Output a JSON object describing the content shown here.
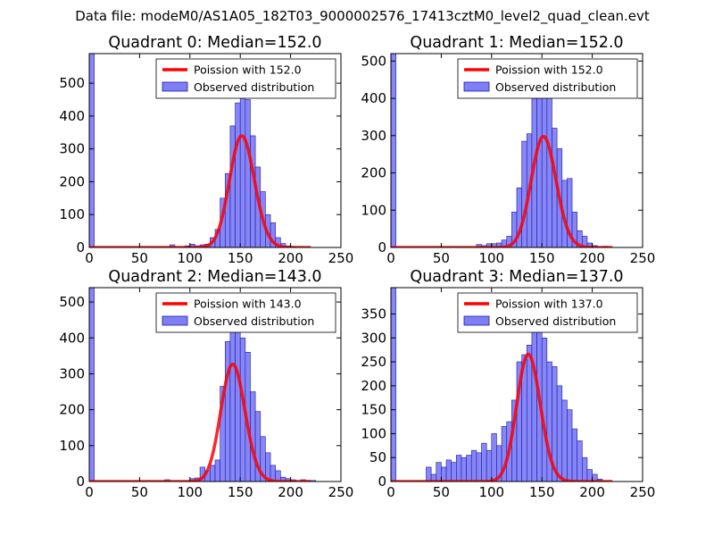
{
  "figure_title": "Data file: modeM0/AS1A05_182T03_9000002576_17413cztM0_level2_quad_clean.evt",
  "colors": {
    "bar_fill": "#7f7ff5",
    "bar_edge": "#1a1aa8",
    "poisson_line": "#ff0000"
  },
  "chart_data": [
    {
      "type": "bar",
      "title": "Quadrant 0: Median=152.0",
      "bin_width": 5,
      "xlim": [
        0,
        250
      ],
      "ylim": [
        0,
        590
      ],
      "xticks": [
        0,
        50,
        100,
        150,
        200,
        250
      ],
      "yticks": [
        0,
        100,
        200,
        300,
        400,
        500
      ],
      "legend_position": "top-right",
      "poisson_label": "Poission with 152.0",
      "hist_label": "Observed distribution",
      "poisson_mu": 152.0,
      "poisson_scale": 10500,
      "bins": [
        {
          "x": 0,
          "v": 590
        },
        {
          "x": 80,
          "v": 8
        },
        {
          "x": 95,
          "v": 5
        },
        {
          "x": 100,
          "v": 10
        },
        {
          "x": 105,
          "v": 5
        },
        {
          "x": 110,
          "v": 8
        },
        {
          "x": 115,
          "v": 10
        },
        {
          "x": 120,
          "v": 30
        },
        {
          "x": 125,
          "v": 55
        },
        {
          "x": 130,
          "v": 150
        },
        {
          "x": 135,
          "v": 225
        },
        {
          "x": 140,
          "v": 370
        },
        {
          "x": 145,
          "v": 440
        },
        {
          "x": 150,
          "v": 460
        },
        {
          "x": 155,
          "v": 450
        },
        {
          "x": 160,
          "v": 340
        },
        {
          "x": 165,
          "v": 245
        },
        {
          "x": 170,
          "v": 170
        },
        {
          "x": 175,
          "v": 100
        },
        {
          "x": 180,
          "v": 75
        },
        {
          "x": 185,
          "v": 30
        },
        {
          "x": 190,
          "v": 12
        },
        {
          "x": 195,
          "v": 5
        },
        {
          "x": 200,
          "v": 3
        }
      ]
    },
    {
      "type": "bar",
      "title": "Quadrant 1: Median=152.0",
      "bin_width": 5,
      "xlim": [
        0,
        250
      ],
      "ylim": [
        0,
        520
      ],
      "xticks": [
        0,
        50,
        100,
        150,
        200,
        250
      ],
      "yticks": [
        0,
        100,
        200,
        300,
        400,
        500
      ],
      "legend_position": "top-right",
      "poisson_label": "Poission with 152.0",
      "hist_label": "Observed distribution",
      "poisson_mu": 152.0,
      "poisson_scale": 9200,
      "bins": [
        {
          "x": 0,
          "v": 520
        },
        {
          "x": 85,
          "v": 8
        },
        {
          "x": 90,
          "v": 5
        },
        {
          "x": 95,
          "v": 10
        },
        {
          "x": 100,
          "v": 10
        },
        {
          "x": 105,
          "v": 12
        },
        {
          "x": 110,
          "v": 20
        },
        {
          "x": 115,
          "v": 30
        },
        {
          "x": 120,
          "v": 95
        },
        {
          "x": 125,
          "v": 160
        },
        {
          "x": 130,
          "v": 285
        },
        {
          "x": 135,
          "v": 305
        },
        {
          "x": 140,
          "v": 400
        },
        {
          "x": 145,
          "v": 430
        },
        {
          "x": 150,
          "v": 410
        },
        {
          "x": 155,
          "v": 480
        },
        {
          "x": 160,
          "v": 320
        },
        {
          "x": 165,
          "v": 265
        },
        {
          "x": 170,
          "v": 180
        },
        {
          "x": 175,
          "v": 185
        },
        {
          "x": 180,
          "v": 95
        },
        {
          "x": 185,
          "v": 45
        },
        {
          "x": 190,
          "v": 30
        },
        {
          "x": 195,
          "v": 12
        },
        {
          "x": 200,
          "v": 5
        },
        {
          "x": 210,
          "v": 3
        }
      ]
    },
    {
      "type": "bar",
      "title": "Quadrant 2: Median=143.0",
      "bin_width": 5,
      "xlim": [
        0,
        250
      ],
      "ylim": [
        0,
        540
      ],
      "xticks": [
        0,
        50,
        100,
        150,
        200,
        250
      ],
      "yticks": [
        0,
        100,
        200,
        300,
        400,
        500
      ],
      "legend_position": "top-right",
      "poisson_label": "Poission with 143.0",
      "hist_label": "Observed distribution",
      "poisson_mu": 143.0,
      "poisson_scale": 9800,
      "bins": [
        {
          "x": 0,
          "v": 540
        },
        {
          "x": 75,
          "v": 5
        },
        {
          "x": 100,
          "v": 8
        },
        {
          "x": 105,
          "v": 10
        },
        {
          "x": 110,
          "v": 40
        },
        {
          "x": 115,
          "v": 30
        },
        {
          "x": 120,
          "v": 45
        },
        {
          "x": 125,
          "v": 60
        },
        {
          "x": 130,
          "v": 265
        },
        {
          "x": 135,
          "v": 390
        },
        {
          "x": 140,
          "v": 470
        },
        {
          "x": 145,
          "v": 500
        },
        {
          "x": 150,
          "v": 400
        },
        {
          "x": 155,
          "v": 360
        },
        {
          "x": 160,
          "v": 250
        },
        {
          "x": 165,
          "v": 195
        },
        {
          "x": 170,
          "v": 125
        },
        {
          "x": 175,
          "v": 80
        },
        {
          "x": 180,
          "v": 45
        },
        {
          "x": 185,
          "v": 30
        },
        {
          "x": 190,
          "v": 12
        },
        {
          "x": 195,
          "v": 8
        },
        {
          "x": 200,
          "v": 5
        },
        {
          "x": 210,
          "v": 5
        },
        {
          "x": 215,
          "v": 3
        },
        {
          "x": 220,
          "v": 3
        }
      ]
    },
    {
      "type": "bar",
      "title": "Quadrant 3: Median=137.0",
      "bin_width": 5,
      "xlim": [
        0,
        250
      ],
      "ylim": [
        0,
        405
      ],
      "xticks": [
        0,
        50,
        100,
        150,
        200,
        250
      ],
      "yticks": [
        0,
        50,
        100,
        150,
        200,
        250,
        300,
        350
      ],
      "legend_position": "top-right",
      "poisson_label": "Poission with 137.0",
      "hist_label": "Observed distribution",
      "poisson_mu": 137.0,
      "poisson_scale": 7800,
      "bins": [
        {
          "x": 0,
          "v": 405
        },
        {
          "x": 35,
          "v": 30
        },
        {
          "x": 40,
          "v": 15
        },
        {
          "x": 45,
          "v": 40
        },
        {
          "x": 50,
          "v": 30
        },
        {
          "x": 55,
          "v": 45
        },
        {
          "x": 60,
          "v": 40
        },
        {
          "x": 65,
          "v": 55
        },
        {
          "x": 70,
          "v": 50
        },
        {
          "x": 75,
          "v": 55
        },
        {
          "x": 80,
          "v": 65
        },
        {
          "x": 85,
          "v": 60
        },
        {
          "x": 90,
          "v": 80
        },
        {
          "x": 95,
          "v": 65
        },
        {
          "x": 100,
          "v": 100
        },
        {
          "x": 105,
          "v": 75
        },
        {
          "x": 110,
          "v": 115
        },
        {
          "x": 115,
          "v": 125
        },
        {
          "x": 120,
          "v": 170
        },
        {
          "x": 125,
          "v": 250
        },
        {
          "x": 130,
          "v": 265
        },
        {
          "x": 135,
          "v": 285
        },
        {
          "x": 140,
          "v": 330
        },
        {
          "x": 145,
          "v": 320
        },
        {
          "x": 150,
          "v": 300
        },
        {
          "x": 155,
          "v": 250
        },
        {
          "x": 160,
          "v": 240
        },
        {
          "x": 165,
          "v": 200
        },
        {
          "x": 170,
          "v": 170
        },
        {
          "x": 175,
          "v": 150
        },
        {
          "x": 180,
          "v": 110
        },
        {
          "x": 185,
          "v": 85
        },
        {
          "x": 190,
          "v": 50
        },
        {
          "x": 195,
          "v": 25
        },
        {
          "x": 200,
          "v": 15
        },
        {
          "x": 205,
          "v": 5
        }
      ]
    }
  ]
}
